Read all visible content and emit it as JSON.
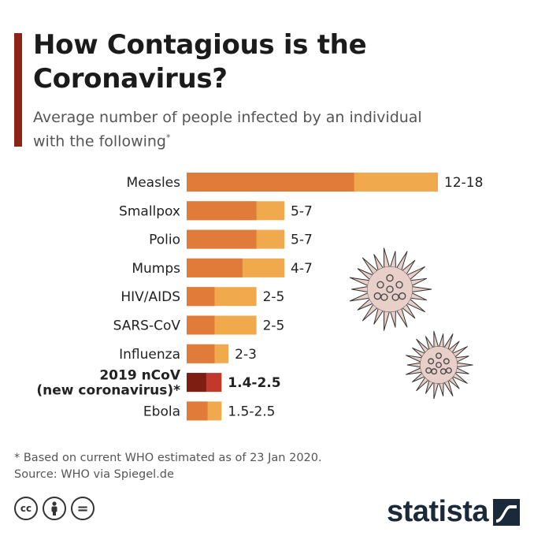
{
  "header": {
    "title": "How Contagious is the Coronavirus?",
    "subtitle": "Average number of people infected by an individual with the following",
    "subtitle_mark": "*"
  },
  "footer": {
    "note": "* Based on current WHO estimated as of 23 Jan 2020.",
    "source": "Source: WHO via Spiegel.de",
    "brand": "statista",
    "license_icons": [
      "cc-icon",
      "by-icon",
      "nd-icon"
    ],
    "cc_label": "cc",
    "nd_label": "="
  },
  "colors": {
    "accent": "#8e2418",
    "low": "#e07b39",
    "high": "#f0a94d",
    "ncov_low": "#7e1e12",
    "ncov_high": "#c0392b",
    "virus": "#e8cfc9"
  },
  "chart_data": {
    "type": "bar",
    "title": "How Contagious is the Coronavirus?",
    "subtitle": "Average number of people infected by an individual with the following",
    "categories": [
      "Measles",
      "Smallpox",
      "Polio",
      "Mumps",
      "HIV/AIDS",
      "SARS-CoV",
      "Influenza",
      "2019 nCoV (new coronavirus)*",
      "Ebola"
    ],
    "label_lines": [
      [
        "Measles"
      ],
      [
        "Smallpox"
      ],
      [
        "Polio"
      ],
      [
        "Mumps"
      ],
      [
        "HIV/AIDS"
      ],
      [
        "SARS-CoV"
      ],
      [
        "Influenza"
      ],
      [
        "2019 nCoV",
        "(new coronavirus)*"
      ],
      [
        "Ebola"
      ]
    ],
    "highlight": [
      false,
      false,
      false,
      false,
      false,
      false,
      false,
      true,
      false
    ],
    "low": [
      12,
      5,
      5,
      4,
      2,
      2,
      2,
      1.4,
      1.5
    ],
    "high": [
      18,
      7,
      7,
      7,
      5,
      5,
      3,
      2.5,
      2.5
    ],
    "value_labels": [
      "12-18",
      "5-7",
      "5-7",
      "4-7",
      "2-5",
      "2-5",
      "2-3",
      "1.4-2.5",
      "1.5-2.5"
    ],
    "xlim": [
      0,
      18
    ],
    "grid": false,
    "legend": "none"
  }
}
